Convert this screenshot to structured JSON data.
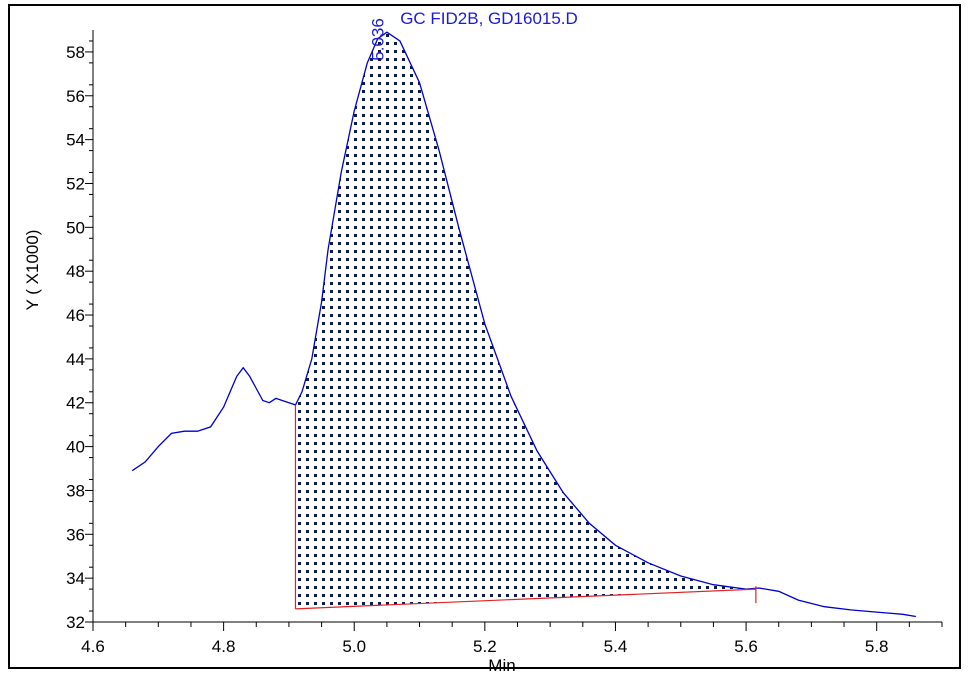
{
  "chart_data": {
    "type": "line",
    "title": "GC FID2B, GD16015.D",
    "xlabel": "Min",
    "ylabel": "Y ( X1000)",
    "xlim": [
      4.6,
      5.9
    ],
    "ylim": [
      32,
      59
    ],
    "x_ticks": [
      "4.6",
      "4.8",
      "5.0",
      "5.2",
      "5.4",
      "5.6",
      "5.8"
    ],
    "y_ticks": [
      "32",
      "34",
      "36",
      "38",
      "40",
      "42",
      "44",
      "46",
      "48",
      "50",
      "52",
      "54",
      "56",
      "58"
    ],
    "series": [
      {
        "color": "#0000cc",
        "points": [
          [
            4.66,
            38.9
          ],
          [
            4.68,
            39.3
          ],
          [
            4.7,
            40.0
          ],
          [
            4.72,
            40.6
          ],
          [
            4.74,
            40.7
          ],
          [
            4.76,
            40.7
          ],
          [
            4.78,
            40.9
          ],
          [
            4.8,
            41.8
          ],
          [
            4.82,
            43.2
          ],
          [
            4.83,
            43.6
          ],
          [
            4.84,
            43.2
          ],
          [
            4.86,
            42.1
          ],
          [
            4.87,
            42.0
          ],
          [
            4.88,
            42.2
          ],
          [
            4.9,
            42.0
          ],
          [
            4.91,
            41.9
          ],
          [
            4.92,
            42.5
          ],
          [
            4.935,
            44.0
          ],
          [
            4.95,
            46.6
          ],
          [
            4.96,
            49.0
          ],
          [
            4.98,
            52.5
          ],
          [
            5.0,
            55.3
          ],
          [
            5.02,
            57.5
          ],
          [
            5.036,
            58.6
          ],
          [
            5.05,
            58.9
          ],
          [
            5.07,
            58.5
          ],
          [
            5.1,
            56.6
          ],
          [
            5.13,
            53.5
          ],
          [
            5.16,
            50.0
          ],
          [
            5.2,
            45.6
          ],
          [
            5.24,
            42.3
          ],
          [
            5.28,
            39.8
          ],
          [
            5.32,
            37.9
          ],
          [
            5.36,
            36.5
          ],
          [
            5.4,
            35.5
          ],
          [
            5.45,
            34.7
          ],
          [
            5.5,
            34.1
          ],
          [
            5.55,
            33.7
          ],
          [
            5.6,
            33.5
          ],
          [
            5.62,
            33.55
          ],
          [
            5.65,
            33.4
          ],
          [
            5.68,
            33.0
          ],
          [
            5.72,
            32.7
          ],
          [
            5.76,
            32.55
          ],
          [
            5.8,
            32.45
          ],
          [
            5.84,
            32.35
          ],
          [
            5.86,
            32.25
          ]
        ]
      }
    ],
    "peak": {
      "label": "5.036",
      "x": 5.036,
      "start_x": 4.91,
      "end_x": 5.615,
      "baseline_start_y": 32.6,
      "baseline_end_y": 33.5,
      "fill_color": "#0c1a4a",
      "baseline_color": "#e22222"
    },
    "grid": false,
    "legend": "none"
  }
}
